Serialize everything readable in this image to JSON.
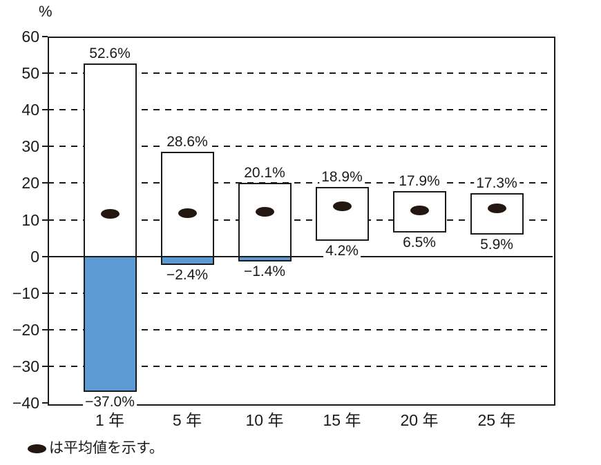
{
  "page": {
    "background": "#ffffff"
  },
  "chart_data": {
    "type": "bar",
    "subtype": "floating-range-bars",
    "title": "",
    "unit_label": "%",
    "xlabel": "",
    "ylabel": "%",
    "ylim": [
      -40,
      60
    ],
    "ytick_step": 10,
    "grid": "dashed horizontal gridlines every 10, solid line at 0, solid outer border",
    "legend_position": "bottom-left",
    "yticks": [
      {
        "value": 60,
        "label": "60"
      },
      {
        "value": 50,
        "label": "50"
      },
      {
        "value": 40,
        "label": "40"
      },
      {
        "value": 30,
        "label": "30"
      },
      {
        "value": 20,
        "label": "20"
      },
      {
        "value": 10,
        "label": "10"
      },
      {
        "value": 0,
        "label": "0"
      },
      {
        "value": -10,
        "label": "−10"
      },
      {
        "value": -20,
        "label": "−20"
      },
      {
        "value": -30,
        "label": "−30"
      },
      {
        "value": -40,
        "label": "−40"
      }
    ],
    "categories": [
      "1 年",
      "5 年",
      "10 年",
      "15 年",
      "20 年",
      "25 年"
    ],
    "series": [
      {
        "category": "1 年",
        "max": 52.6,
        "min": -37.0,
        "mean_est": 11.6,
        "max_label": "52.6%",
        "min_label": "−37.0%"
      },
      {
        "category": "5 年",
        "max": 28.6,
        "min": -2.4,
        "mean_est": 11.7,
        "max_label": "28.6%",
        "min_label": "−2.4%"
      },
      {
        "category": "10 年",
        "max": 20.1,
        "min": -1.4,
        "mean_est": 12.2,
        "max_label": "20.1%",
        "min_label": "−1.4%"
      },
      {
        "category": "15 年",
        "max": 18.9,
        "min": 4.2,
        "mean_est": 13.6,
        "max_label": "18.9%",
        "min_label": "4.2%"
      },
      {
        "category": "20 年",
        "max": 17.9,
        "min": 6.5,
        "mean_est": 12.6,
        "max_label": "17.9%",
        "min_label": "6.5%"
      },
      {
        "category": "25 年",
        "max": 17.3,
        "min": 5.9,
        "mean_est": 13.1,
        "max_label": "17.3%",
        "min_label": "5.9%"
      }
    ],
    "legend": {
      "marker": "●",
      "text": "は平均値を示す。",
      "full": "●は平均値を示す。"
    },
    "colors": {
      "negative_fill": "#5C9BD3",
      "bar_fill": "#FFFFFF",
      "stroke": "#1A1A1A",
      "mean_dot": "#241711",
      "text": "#1A1A1A"
    }
  }
}
